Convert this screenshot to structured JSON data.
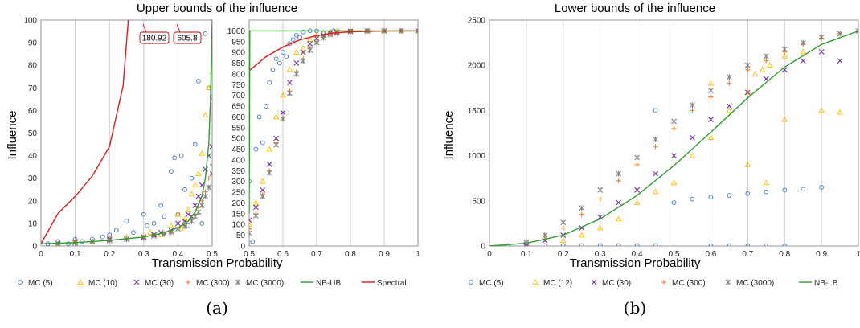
{
  "colors": {
    "MC (5)": "#4472c4",
    "MC (10)": "#ffc000",
    "MC (12)": "#ffc000",
    "MC (30)": "#7030a0",
    "MC (300)": "#ed7d31",
    "MC (3000)": "#7f7f7f",
    "NB-UB": "#339933",
    "NB-LB": "#339933",
    "Spectral": "#e31a1c"
  },
  "chart_data": [
    {
      "id": "a-left",
      "type": "scatter",
      "title": "Upper bounds of the influence",
      "xlabel": "Transmission Probability",
      "ylabel": "Influence",
      "xlim": [
        0,
        0.5
      ],
      "ylim": [
        0,
        100
      ],
      "xticks": [
        "0",
        "0.1",
        "0.2",
        "0.3",
        "0.4",
        "0.5"
      ],
      "yticks": [
        "0",
        "10",
        "20",
        "30",
        "40",
        "50",
        "60",
        "70",
        "80",
        "90",
        "100"
      ],
      "xgrid": true,
      "annotations": [
        "180.92",
        "605.8"
      ],
      "series": [
        {
          "name": "Spectral",
          "marker": "line",
          "x": [
            0,
            0.05,
            0.1,
            0.15,
            0.2,
            0.24,
            0.255
          ],
          "y": [
            1,
            14.5,
            22,
            31,
            44,
            71,
            100
          ]
        },
        {
          "name": "NB-UB",
          "marker": "line",
          "x": [
            0,
            0.1,
            0.2,
            0.3,
            0.35,
            0.4,
            0.43,
            0.45,
            0.47,
            0.48,
            0.49,
            0.495,
            0.5
          ],
          "y": [
            1,
            1.5,
            2.5,
            4,
            5.5,
            8,
            11,
            15,
            22,
            30,
            45,
            65,
            100
          ]
        },
        {
          "name": "MC (5)",
          "marker": "circle",
          "x": [
            0.02,
            0.05,
            0.08,
            0.1,
            0.12,
            0.15,
            0.18,
            0.2,
            0.22,
            0.25,
            0.27,
            0.3,
            0.31,
            0.33,
            0.35,
            0.36,
            0.38,
            0.39,
            0.4,
            0.41,
            0.42,
            0.43,
            0.44,
            0.45,
            0.46,
            0.47,
            0.48,
            0.49,
            0.5
          ],
          "y": [
            1,
            2,
            1,
            3,
            2,
            3,
            4,
            5,
            7,
            11,
            6,
            14,
            9,
            10,
            18,
            13,
            33,
            39,
            14,
            40,
            25,
            9,
            30,
            45,
            73,
            10,
            94,
            70,
            66
          ]
        },
        {
          "name": "MC (10)",
          "marker": "triangle",
          "x": [
            0.05,
            0.1,
            0.15,
            0.2,
            0.25,
            0.3,
            0.32,
            0.35,
            0.38,
            0.4,
            0.41,
            0.42,
            0.43,
            0.44,
            0.45,
            0.46,
            0.47,
            0.48,
            0.49,
            0.5
          ],
          "y": [
            1,
            2,
            2,
            3,
            4,
            4,
            6,
            5,
            9,
            14,
            8,
            12,
            16,
            23,
            27,
            32,
            41,
            58,
            70,
            77
          ]
        },
        {
          "name": "MC (30)",
          "marker": "x",
          "x": [
            0.05,
            0.1,
            0.15,
            0.2,
            0.25,
            0.3,
            0.33,
            0.35,
            0.38,
            0.4,
            0.42,
            0.43,
            0.44,
            0.45,
            0.46,
            0.47,
            0.48,
            0.49,
            0.5
          ],
          "y": [
            1,
            1.5,
            2,
            3,
            3,
            4,
            5,
            6,
            7,
            10,
            11,
            14,
            13,
            18,
            22,
            27,
            34,
            40,
            44
          ]
        },
        {
          "name": "MC (300)",
          "marker": "plus",
          "x": [
            0.05,
            0.1,
            0.15,
            0.2,
            0.25,
            0.3,
            0.33,
            0.36,
            0.38,
            0.4,
            0.42,
            0.44,
            0.45,
            0.46,
            0.47,
            0.48,
            0.49,
            0.5
          ],
          "y": [
            1,
            1.5,
            2,
            2.5,
            3,
            4,
            4.5,
            5.5,
            6,
            8,
            9,
            12,
            14,
            17,
            20,
            24,
            30,
            36
          ]
        },
        {
          "name": "MC (3000)",
          "marker": "star",
          "x": [
            0.05,
            0.1,
            0.15,
            0.2,
            0.25,
            0.3,
            0.33,
            0.36,
            0.38,
            0.4,
            0.42,
            0.44,
            0.45,
            0.46,
            0.47,
            0.48,
            0.49,
            0.5
          ],
          "y": [
            1,
            1.4,
            2,
            2.4,
            3,
            3.6,
            4.4,
            5.4,
            6.2,
            7.6,
            8.8,
            11,
            13,
            15,
            18,
            22,
            26,
            32
          ]
        }
      ]
    },
    {
      "id": "a-right",
      "type": "scatter",
      "xlim": [
        0.5,
        1
      ],
      "ylim": [
        0,
        1050
      ],
      "xticks": [
        "0.5",
        "0.6",
        "0.7",
        "0.8",
        "0.9",
        "1"
      ],
      "yticks": [
        "0",
        "50",
        "100",
        "150",
        "200",
        "250",
        "300",
        "350",
        "400",
        "450",
        "500",
        "550",
        "600",
        "650",
        "700",
        "750",
        "800",
        "850",
        "900",
        "950",
        "1000"
      ],
      "xgrid": true,
      "series": [
        {
          "name": "Spectral",
          "marker": "line",
          "x": [
            0.5,
            0.55,
            0.6,
            0.65,
            0.7,
            0.75,
            0.8,
            0.9,
            1.0
          ],
          "y": [
            815,
            880,
            925,
            958,
            978,
            990,
            996,
            999,
            1000
          ]
        },
        {
          "name": "NB-UB",
          "marker": "line",
          "x": [
            0.5,
            0.502,
            1.0
          ],
          "y": [
            150,
            1000,
            1000
          ]
        },
        {
          "name": "MC (5)",
          "marker": "circle",
          "x": [
            0.5,
            0.51,
            0.52,
            0.53,
            0.54,
            0.55,
            0.56,
            0.57,
            0.58,
            0.59,
            0.6,
            0.61,
            0.62,
            0.63,
            0.64,
            0.65,
            0.66,
            0.68,
            0.7,
            0.72,
            0.75,
            0.8,
            0.85,
            0.9,
            0.95,
            1.0
          ],
          "y": [
            300,
            20,
            450,
            600,
            480,
            650,
            760,
            820,
            870,
            850,
            900,
            880,
            940,
            960,
            980,
            970,
            995,
            1000,
            1000,
            990,
            1000,
            1000,
            1000,
            1000,
            1000,
            1000
          ]
        },
        {
          "name": "MC (10)",
          "marker": "triangle",
          "x": [
            0.5,
            0.52,
            0.54,
            0.56,
            0.58,
            0.6,
            0.62,
            0.64,
            0.66,
            0.68,
            0.7,
            0.72,
            0.74,
            0.76,
            0.8,
            0.85,
            0.9,
            0.95,
            1.0
          ],
          "y": [
            100,
            200,
            300,
            450,
            600,
            700,
            820,
            900,
            920,
            960,
            980,
            990,
            995,
            1000,
            1000,
            1000,
            1000,
            1000,
            1000
          ]
        },
        {
          "name": "MC (30)",
          "marker": "x",
          "x": [
            0.5,
            0.52,
            0.54,
            0.56,
            0.58,
            0.6,
            0.62,
            0.64,
            0.66,
            0.68,
            0.7,
            0.72,
            0.74,
            0.76,
            0.8,
            0.85,
            0.9,
            0.95,
            1.0
          ],
          "y": [
            120,
            180,
            260,
            380,
            500,
            620,
            760,
            850,
            900,
            940,
            965,
            980,
            990,
            995,
            998,
            1000,
            1000,
            1000,
            1000
          ]
        },
        {
          "name": "MC (300)",
          "marker": "plus",
          "x": [
            0.5,
            0.52,
            0.54,
            0.56,
            0.58,
            0.6,
            0.62,
            0.64,
            0.66,
            0.68,
            0.7,
            0.72,
            0.74,
            0.76,
            0.8,
            0.85,
            0.9,
            0.95,
            1.0
          ],
          "y": [
            80,
            150,
            240,
            350,
            480,
            600,
            720,
            810,
            870,
            920,
            950,
            970,
            985,
            992,
            997,
            999,
            1000,
            1000,
            1000
          ]
        },
        {
          "name": "MC (3000)",
          "marker": "star",
          "x": [
            0.5,
            0.52,
            0.54,
            0.56,
            0.58,
            0.6,
            0.62,
            0.64,
            0.66,
            0.68,
            0.7,
            0.72,
            0.74,
            0.76,
            0.8,
            0.85,
            0.9,
            0.95,
            1.0
          ],
          "y": [
            60,
            140,
            230,
            340,
            470,
            590,
            710,
            800,
            860,
            910,
            945,
            968,
            983,
            990,
            996,
            999,
            1000,
            1000,
            1000
          ]
        }
      ]
    },
    {
      "id": "b",
      "type": "scatter",
      "title": "Lower bounds of the influence",
      "xlabel": "Transmission Probability",
      "ylabel": "Influence",
      "xlim": [
        0,
        1
      ],
      "ylim": [
        0,
        2500
      ],
      "xticks": [
        "0",
        "0.1",
        "0.2",
        "0.3",
        "0.4",
        "0.5",
        "0.6",
        "0.7",
        "0.8",
        "0.9",
        "1"
      ],
      "yticks": [
        "0",
        "500",
        "1000",
        "1500",
        "2000",
        "2500"
      ],
      "xgrid": true,
      "series": [
        {
          "name": "NB-LB",
          "marker": "line",
          "x": [
            0,
            0.1,
            0.2,
            0.3,
            0.4,
            0.5,
            0.6,
            0.7,
            0.8,
            0.9,
            1.0
          ],
          "y": [
            0,
            30,
            120,
            300,
            560,
            890,
            1260,
            1640,
            1980,
            2230,
            2380
          ]
        },
        {
          "name": "MC (5)",
          "marker": "circle",
          "x": [
            0.05,
            0.1,
            0.15,
            0.2,
            0.25,
            0.3,
            0.35,
            0.4,
            0.45,
            0.5,
            0.55,
            0.6,
            0.65,
            0.7,
            0.75,
            0.8,
            0.85,
            0.9,
            0.45,
            0.6,
            0.65,
            0.7,
            0.75,
            0.8
          ],
          "y": [
            5,
            5,
            5,
            5,
            5,
            5,
            5,
            5,
            5,
            480,
            520,
            540,
            560,
            580,
            600,
            620,
            630,
            650,
            1500,
            0,
            0,
            0,
            0,
            0
          ]
        },
        {
          "name": "MC (12)",
          "marker": "triangle",
          "x": [
            0.2,
            0.25,
            0.3,
            0.35,
            0.4,
            0.45,
            0.5,
            0.55,
            0.6,
            0.65,
            0.7,
            0.72,
            0.74,
            0.76,
            0.8,
            0.85,
            0.9,
            0.95,
            0.6,
            0.7,
            0.75,
            0.8
          ],
          "y": [
            60,
            120,
            200,
            300,
            480,
            600,
            700,
            1000,
            1200,
            1500,
            1700,
            1900,
            1950,
            2000,
            2100,
            2150,
            1500,
            1480,
            1800,
            900,
            700,
            1400
          ]
        },
        {
          "name": "MC (30)",
          "marker": "x",
          "x": [
            0.1,
            0.15,
            0.2,
            0.25,
            0.3,
            0.35,
            0.4,
            0.45,
            0.5,
            0.55,
            0.6,
            0.65,
            0.7,
            0.75,
            0.8,
            0.85,
            0.9,
            0.95,
            1.0
          ],
          "y": [
            20,
            60,
            120,
            200,
            320,
            480,
            620,
            800,
            1000,
            1200,
            1400,
            1550,
            1700,
            1850,
            1950,
            2050,
            2150,
            2050,
            2380
          ]
        },
        {
          "name": "MC (300)",
          "marker": "plus",
          "x": [
            0.1,
            0.15,
            0.2,
            0.25,
            0.3,
            0.35,
            0.4,
            0.45,
            0.5,
            0.55,
            0.6,
            0.65,
            0.7,
            0.75,
            0.8,
            0.85,
            0.9,
            0.95,
            1.0
          ],
          "y": [
            30,
            90,
            200,
            350,
            520,
            720,
            900,
            1100,
            1300,
            1500,
            1650,
            1800,
            1950,
            2050,
            2150,
            2230,
            2300,
            2350,
            2380
          ]
        },
        {
          "name": "MC (3000)",
          "marker": "star",
          "x": [
            0.1,
            0.15,
            0.2,
            0.25,
            0.3,
            0.35,
            0.4,
            0.45,
            0.5,
            0.55,
            0.6,
            0.65,
            0.7,
            0.75,
            0.8,
            0.85,
            0.9,
            0.95,
            1.0
          ],
          "y": [
            40,
            120,
            260,
            420,
            620,
            800,
            980,
            1180,
            1380,
            1560,
            1720,
            1870,
            2000,
            2100,
            2180,
            2250,
            2310,
            2350,
            2380
          ]
        }
      ]
    }
  ],
  "legend_a": [
    "MC (5)",
    "MC (10)",
    "MC (30)",
    "MC (300)",
    "MC (3000)",
    "NB-UB",
    "Spectral"
  ],
  "legend_b": [
    "MC (5)",
    "MC (12)",
    "MC (30)",
    "MC (300)",
    "MC (3000)",
    "NB-LB"
  ],
  "captions": {
    "a": "(a)",
    "b": "(b)"
  }
}
